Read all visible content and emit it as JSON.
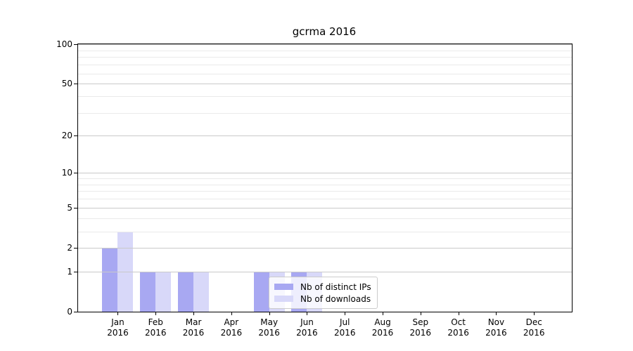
{
  "chart_data": {
    "type": "bar",
    "title": "gcrma 2016",
    "categories": [
      "Jan 2016",
      "Feb 2016",
      "Mar 2016",
      "Apr 2016",
      "May 2016",
      "Jun 2016",
      "Jul 2016",
      "Aug 2016",
      "Sep 2016",
      "Oct 2016",
      "Nov 2016",
      "Dec 2016"
    ],
    "series": [
      {
        "name": "Nb of distinct IPs",
        "color": "#a8a8f2",
        "values": [
          2,
          1,
          1,
          0,
          1,
          1,
          0,
          0,
          0,
          0,
          0,
          0
        ]
      },
      {
        "name": "Nb of downloads",
        "color": "#d8d8f9",
        "values": [
          3,
          1,
          1,
          0,
          1,
          1,
          0,
          0,
          0,
          0,
          0,
          0
        ]
      }
    ],
    "yscale": "log1p",
    "ylim": [
      0,
      100
    ],
    "yticks": [
      0,
      1,
      2,
      5,
      10,
      20,
      50,
      100
    ],
    "minor_yticks": [
      3,
      4,
      6,
      7,
      8,
      9,
      30,
      40,
      60,
      70,
      80,
      90
    ],
    "grid": true,
    "legend_position": "lower-center-inside"
  },
  "colors": {
    "grid_major": "#c9c9c9",
    "grid_minor": "#eaeaea",
    "spine": "#000000"
  }
}
